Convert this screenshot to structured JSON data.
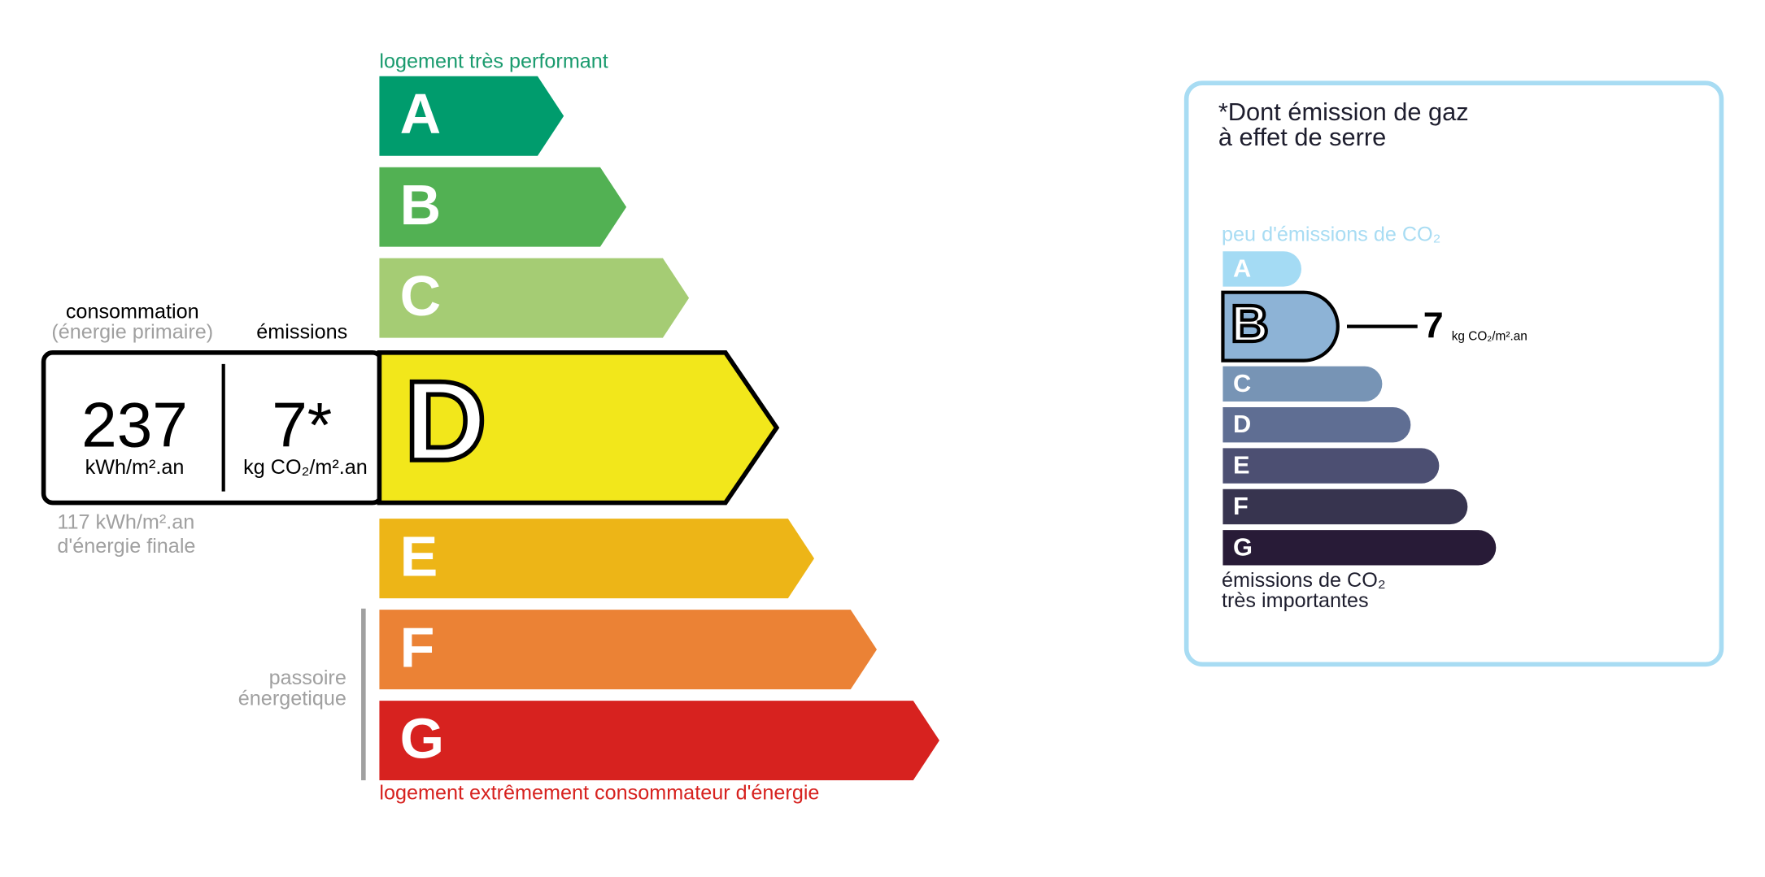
{
  "energy": {
    "top_label": "logement très performant",
    "bottom_label": "logement extrêmement consommateur d'énergie",
    "classes": [
      "A",
      "B",
      "C",
      "D",
      "E",
      "F",
      "G"
    ],
    "colors": [
      "#009c6d",
      "#52b153",
      "#a5cc74",
      "#f2e71b",
      "#edb517",
      "#eb8235",
      "#d7221f"
    ],
    "highlighted": "D",
    "consumption_label": "consommation",
    "consumption_sublabel": "(énergie primaire)",
    "consumption_value": 237,
    "consumption_unit": "kWh/m².an",
    "final_value": "117 kWh/m².an",
    "final_label": "d'énergie finale",
    "emissions_label": "émissions",
    "emissions_value": "7*",
    "emissions_unit": "kg CO₂/m².an",
    "passoire_lines": [
      "passoire",
      "énergetique"
    ]
  },
  "ges": {
    "title_lines": [
      "*Dont émission de gaz",
      "à effet de serre"
    ],
    "top_label": "peu d'émissions de CO₂",
    "bottom_label_lines": [
      "émissions de CO₂",
      "très importantes"
    ],
    "classes": [
      "A",
      "B",
      "C",
      "D",
      "E",
      "F",
      "G"
    ],
    "colors": [
      "#a4dbf4",
      "#8db3d6",
      "#7794b5",
      "#5f6e93",
      "#4c4f72",
      "#37344f",
      "#281b37"
    ],
    "highlighted": "B",
    "value": 7,
    "unit": "kg CO₂/m².an"
  }
}
